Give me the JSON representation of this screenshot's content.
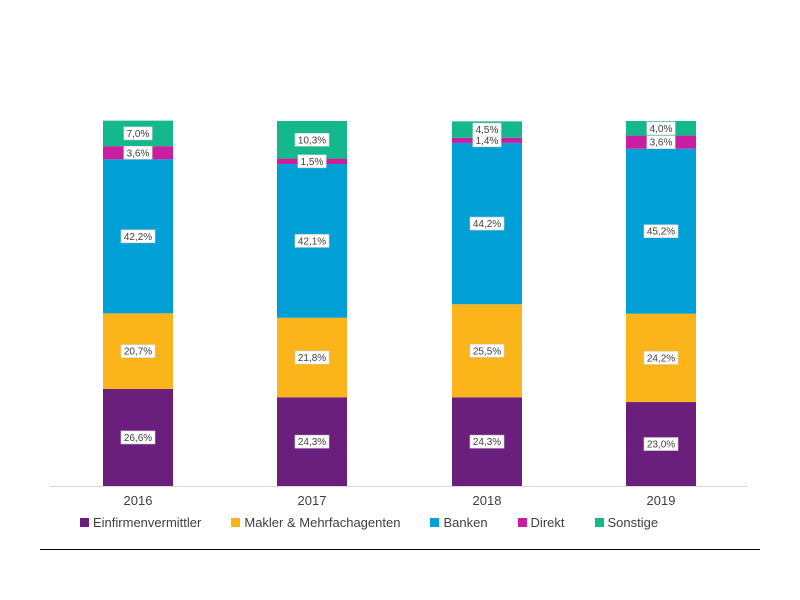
{
  "chart_data": {
    "type": "bar",
    "stacked": true,
    "percent": true,
    "categories": [
      "2016",
      "2017",
      "2018",
      "2019"
    ],
    "series": [
      {
        "name": "Einfirmenvermittler",
        "color": "#6b1f7d",
        "values": [
          26.6,
          24.3,
          24.3,
          23.0
        ],
        "labels": [
          "26,6%",
          "24,3%",
          "24,3%",
          "23,0%"
        ]
      },
      {
        "name": "Makler & Mehrfachagenten",
        "color": "#fbb41a",
        "values": [
          20.7,
          21.8,
          25.5,
          24.2
        ],
        "labels": [
          "20,7%",
          "21,8%",
          "25,5%",
          "24,2%"
        ]
      },
      {
        "name": "Banken",
        "color": "#00a0d6",
        "values": [
          42.2,
          42.1,
          44.2,
          45.2
        ],
        "labels": [
          "42,2%",
          "42,1%",
          "44,2%",
          "45,2%"
        ]
      },
      {
        "name": "Direkt",
        "color": "#c81e9f",
        "values": [
          3.6,
          1.5,
          1.4,
          3.6
        ],
        "labels": [
          "3,6%",
          "1,5%",
          "1,4%",
          "3,6%"
        ]
      },
      {
        "name": "Sonstige",
        "color": "#13b98a",
        "values": [
          7.0,
          10.3,
          4.5,
          4.0
        ],
        "labels": [
          "7,0%",
          "10,3%",
          "4,5%",
          "4,0%"
        ]
      }
    ],
    "ylim": [
      0,
      100
    ],
    "grid": false,
    "legend_position": "bottom"
  }
}
